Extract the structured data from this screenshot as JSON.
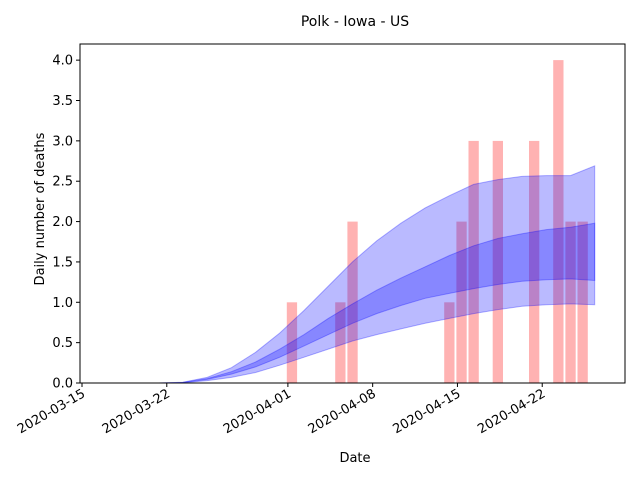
{
  "colors": {
    "bar": "#ff0000",
    "band": "#0000ff",
    "axis": "#000000",
    "background": "#ffffff"
  },
  "chart_data": {
    "type": "bar",
    "title": "Polk - Iowa - US",
    "xlabel": "Date",
    "ylabel": "Daily number of deaths",
    "grid": false,
    "x_axis": {
      "type": "date",
      "range": [
        "2020-03-15",
        "2020-04-29"
      ],
      "ticks": [
        "2020-03-15",
        "2020-03-22",
        "2020-04-01",
        "2020-04-08",
        "2020-04-15",
        "2020-04-22"
      ]
    },
    "y_axis": {
      "range": [
        0,
        4.2
      ],
      "ticks": [
        "0.0",
        "0.5",
        "1.0",
        "1.5",
        "2.0",
        "2.5",
        "3.0",
        "3.5",
        "4.0"
      ]
    },
    "series": [
      {
        "type": "bar",
        "dates": [
          "2020-04-01",
          "2020-04-05",
          "2020-04-06",
          "2020-04-14",
          "2020-04-15",
          "2020-04-16",
          "2020-04-18",
          "2020-04-21",
          "2020-04-23",
          "2020-04-24",
          "2020-04-25"
        ],
        "values": [
          1,
          1,
          2,
          1,
          2,
          3,
          3,
          3,
          4,
          2,
          2
        ]
      },
      {
        "type": "band",
        "dates": [
          "2020-03-21",
          "2020-03-23",
          "2020-03-25",
          "2020-03-27",
          "2020-03-29",
          "2020-03-31",
          "2020-04-02",
          "2020-04-04",
          "2020-04-06",
          "2020-04-08",
          "2020-04-10",
          "2020-04-12",
          "2020-04-14",
          "2020-04-16",
          "2020-04-18",
          "2020-04-20",
          "2020-04-22",
          "2020-04-24",
          "2020-04-26"
        ],
        "lower": [
          0,
          0.003,
          0.03,
          0.07,
          0.13,
          0.22,
          0.32,
          0.42,
          0.52,
          0.6,
          0.67,
          0.74,
          0.8,
          0.86,
          0.91,
          0.95,
          0.97,
          0.98,
          0.97
        ],
        "upper": [
          0,
          0.01,
          0.07,
          0.19,
          0.38,
          0.62,
          0.9,
          1.2,
          1.5,
          1.76,
          1.98,
          2.17,
          2.32,
          2.46,
          2.52,
          2.56,
          2.57,
          2.57,
          2.69
        ]
      },
      {
        "type": "band",
        "dates": [
          "2020-03-21",
          "2020-03-23",
          "2020-03-25",
          "2020-03-27",
          "2020-03-29",
          "2020-03-31",
          "2020-04-02",
          "2020-04-04",
          "2020-04-06",
          "2020-04-08",
          "2020-04-10",
          "2020-04-12",
          "2020-04-14",
          "2020-04-16",
          "2020-04-18",
          "2020-04-20",
          "2020-04-22",
          "2020-04-24",
          "2020-04-26"
        ],
        "lower": [
          0,
          0.005,
          0.045,
          0.11,
          0.2,
          0.32,
          0.46,
          0.6,
          0.74,
          0.86,
          0.96,
          1.05,
          1.11,
          1.17,
          1.22,
          1.26,
          1.28,
          1.29,
          1.27
        ],
        "upper": [
          0,
          0.008,
          0.055,
          0.14,
          0.26,
          0.42,
          0.6,
          0.8,
          0.98,
          1.15,
          1.3,
          1.44,
          1.58,
          1.7,
          1.79,
          1.85,
          1.9,
          1.93,
          1.98
        ]
      }
    ]
  }
}
